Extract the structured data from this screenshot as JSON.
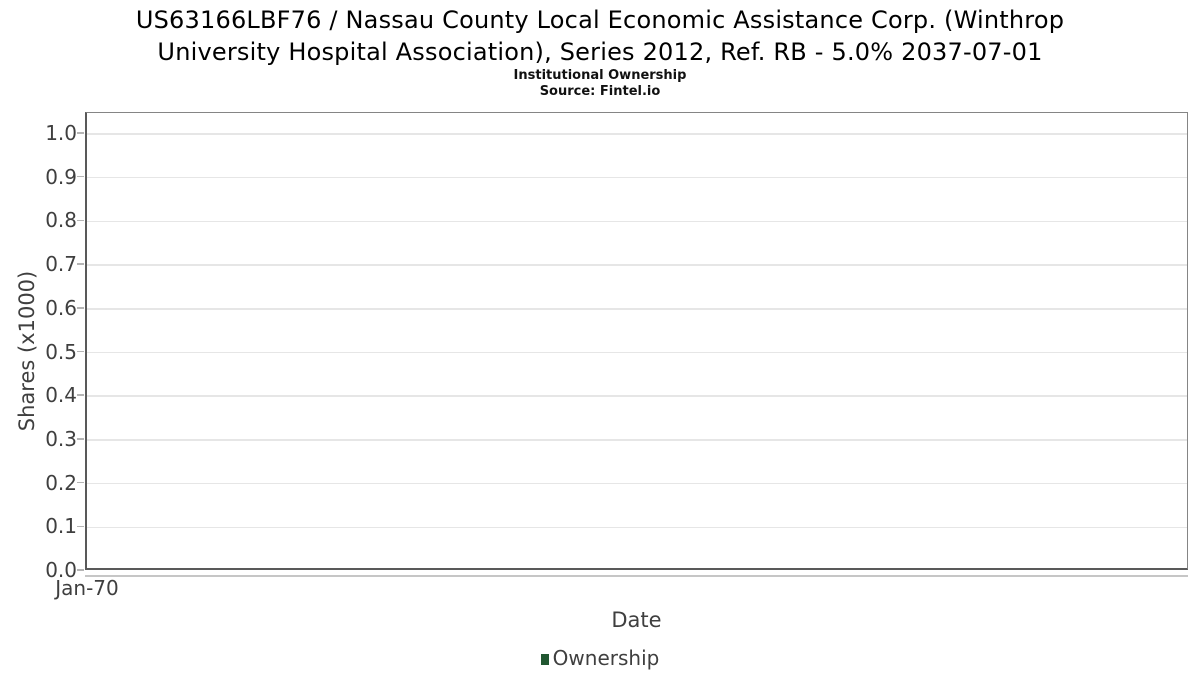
{
  "header": {
    "title_lines": [
      "US63166LBF76 / Nassau County Local Economic Assistance Corp. (Winthrop",
      "University Hospital Association), Series 2012, Ref. RB - 5.0% 2037-07-01"
    ],
    "subtitle": "Institutional Ownership",
    "source": "Source: Fintel.io"
  },
  "chart_data": {
    "type": "line",
    "title": "US63166LBF76 / Nassau County Local Economic Assistance Corp. (Winthrop University Hospital Association), Series 2012, Ref. RB - 5.0% 2037-07-01",
    "subtitle": "Institutional Ownership",
    "source": "Source: Fintel.io",
    "xlabel": "Date",
    "ylabel": "Shares (x1000)",
    "x_tick_labels": [
      "Jan-70"
    ],
    "y_ticks": [
      0.0,
      0.1,
      0.2,
      0.3,
      0.4,
      0.5,
      0.6,
      0.7,
      0.8,
      0.9,
      1.0
    ],
    "y_tick_format_decimals": 1,
    "ylim": [
      0.0,
      1.048
    ],
    "grid": true,
    "legend": {
      "position": "bottom",
      "entries": [
        {
          "label": "Ownership",
          "color": "#215731"
        }
      ]
    },
    "series": [
      {
        "name": "Ownership",
        "x": [],
        "values": []
      }
    ]
  },
  "colors": {
    "background": "#ffffff",
    "axis_dark": "#595959",
    "axis_light": "#858585",
    "gridline": "#e6e6e6",
    "tick_mark": "#b5b5b5",
    "tick_text": "#3f3f3f",
    "title_text": "#000000",
    "legend_ownership": "#215731"
  }
}
